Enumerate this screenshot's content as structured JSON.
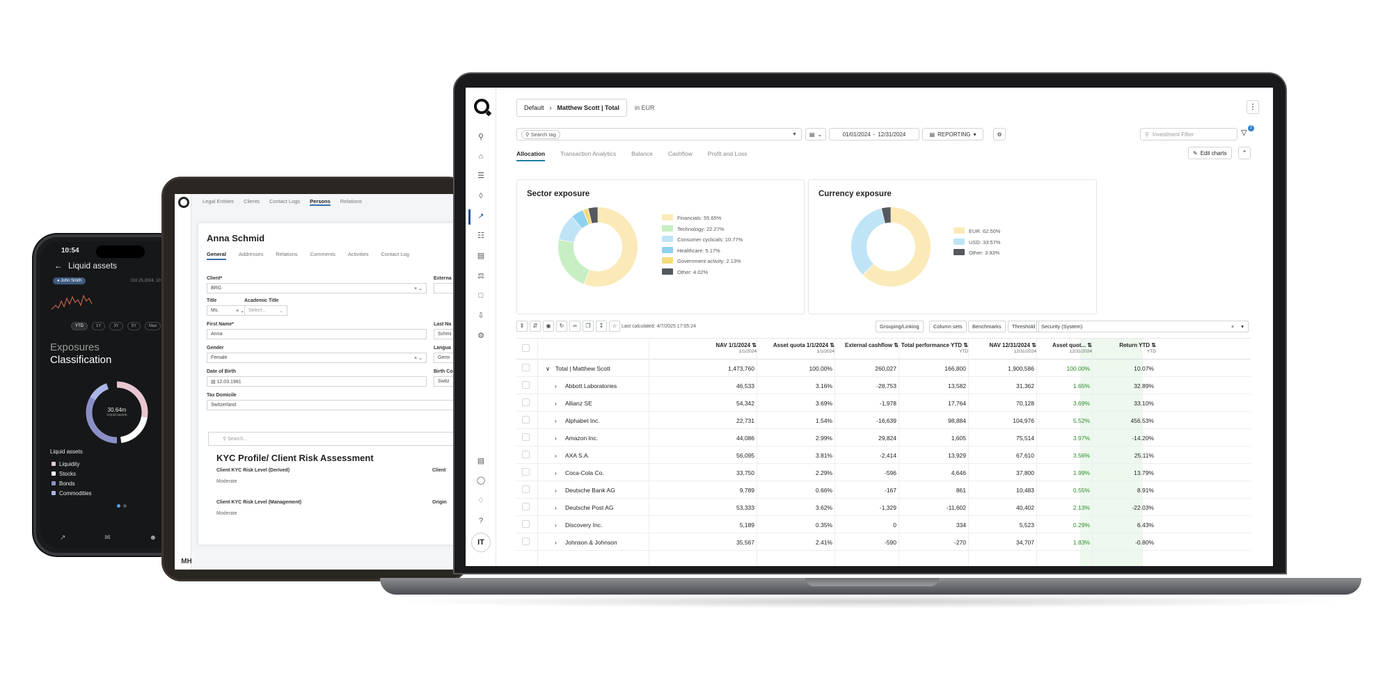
{
  "phone": {
    "time": "10:54",
    "title": "Liquid assets",
    "user_chip": "John Smith",
    "date": "Oct 25,2024, 10:5",
    "range_pills": [
      "YTD",
      "1Y",
      "3Y",
      "5Y",
      "Max"
    ],
    "exposures": "Exposures",
    "classification": "Classification",
    "donut_value": "30.64m",
    "donut_caption": "Liquid assets",
    "list_title": "Liquid assets",
    "legend": [
      {
        "label": "Liquidity",
        "color": "#e8c6d0"
      },
      {
        "label": "Stocks",
        "color": "#ffffff"
      },
      {
        "label": "Bonds",
        "color": "#8b8fc6"
      },
      {
        "label": "Commodities",
        "color": "#a9b6e6"
      }
    ]
  },
  "tablet": {
    "top_tabs": [
      "Legal Entities",
      "Clients",
      "Contact Logs",
      "Persons",
      "Relations"
    ],
    "active_top_tab": "Persons",
    "person_name": "Anna Schmid",
    "tabs": [
      "General",
      "Addresses",
      "Relations",
      "Comments",
      "Activities",
      "Contact Log"
    ],
    "active_tab": "General",
    "fields": {
      "client_label": "Client*",
      "client_value": "BRG",
      "external_label": "Externa",
      "title_label": "Title",
      "title_value": "Ms.",
      "academic_label": "Academic Title",
      "academic_placeholder": "Select...",
      "first_label": "First Name*",
      "first_value": "Anna",
      "last_label": "Last Na",
      "last_value": "Schmi",
      "gender_label": "Gender",
      "gender_value": "Female",
      "lang_label": "Langua",
      "lang_value": "Germ",
      "dob_label": "Date of Birth",
      "dob_value": "12.03.1981",
      "birthc_label": "Birth Co",
      "birthc_value": "Switz",
      "tax_label": "Tax Domicile",
      "tax_value": "Switzerland"
    },
    "search_placeholder": "Search...",
    "kyc_title": "KYC Profile/ Client Risk Assessment",
    "kyc_derived_label": "Client KYC Risk Level (Derived)",
    "kyc_derived_value": "Moderate",
    "kyc_client_label": "Client",
    "kyc_mgmt_label": "Client KYC Risk Level (Management)",
    "kyc_mgmt_value": "Moderate",
    "origin_label": "Origin",
    "footer_initials": "MH"
  },
  "laptop": {
    "breadcrumb": {
      "root": "Default",
      "current": "Matthew Scott | Total"
    },
    "currency_note": "in EUR",
    "search_tag_placeholder": "Search tag",
    "date_from": "01/01/2024",
    "date_sep": "-",
    "date_to": "12/31/2024",
    "reporting": "REPORTING",
    "investment_filter_placeholder": "Investment Filter",
    "filter_badge": "2",
    "tabs": [
      "Allocation",
      "Transaction Analytics",
      "Balance",
      "Cashflow",
      "Profit and Loss"
    ],
    "active_tab": "Allocation",
    "edit_charts": "Edit charts",
    "user_initials": "IT",
    "last_calculated": "Last calculated: 4/7/2025 17:05:24",
    "grid_buttons": [
      "Grouping/Linking",
      "Column sets",
      "Benchmarks",
      "Threshold"
    ],
    "security_select": "Security (System)",
    "columns": [
      {
        "title": "NAV 1/1/2024",
        "sub": "1/1/2024"
      },
      {
        "title": "Asset quota 1/1/2024",
        "sub": "1/1/2024"
      },
      {
        "title": "External cashflow",
        "sub": ""
      },
      {
        "title": "Total performance YTD",
        "sub": "YTD"
      },
      {
        "title": "NAV 12/31/2024",
        "sub": "12/31/2024"
      },
      {
        "title": "Asset quot...",
        "sub": "12/31/2024"
      },
      {
        "title": "Return YTD",
        "sub": "YTD"
      }
    ],
    "rows": [
      {
        "name": "Total | Matthew Scott",
        "nav0": "1,473,760",
        "q0": "100.00%",
        "ext": "260,027",
        "perf": "166,800",
        "nav1": "1,900,586",
        "q1": "100.00%",
        "ret": "10.07%"
      },
      {
        "name": "Abbott Laboratories",
        "nav0": "46,533",
        "q0": "3.16%",
        "ext": "-28,753",
        "perf": "13,582",
        "nav1": "31,362",
        "q1": "1.65%",
        "ret": "32.89%"
      },
      {
        "name": "Allianz SE",
        "nav0": "54,342",
        "q0": "3.69%",
        "ext": "-1,978",
        "perf": "17,764",
        "nav1": "70,128",
        "q1": "3.69%",
        "ret": "33.10%"
      },
      {
        "name": "Alphabet Inc.",
        "nav0": "22,731",
        "q0": "1.54%",
        "ext": "-16,639",
        "perf": "98,884",
        "nav1": "104,976",
        "q1": "5.52%",
        "ret": "456.53%"
      },
      {
        "name": "Amazon Inc.",
        "nav0": "44,086",
        "q0": "2.99%",
        "ext": "29,824",
        "perf": "1,605",
        "nav1": "75,514",
        "q1": "3.97%",
        "ret": "-14.20%"
      },
      {
        "name": "AXA S.A.",
        "nav0": "56,095",
        "q0": "3.81%",
        "ext": "-2,414",
        "perf": "13,929",
        "nav1": "67,610",
        "q1": "3.56%",
        "ret": "25.11%"
      },
      {
        "name": "Coca-Cola Co.",
        "nav0": "33,750",
        "q0": "2.29%",
        "ext": "-596",
        "perf": "4,646",
        "nav1": "37,800",
        "q1": "1.99%",
        "ret": "13.79%"
      },
      {
        "name": "Deutsche Bank AG",
        "nav0": "9,789",
        "q0": "0.66%",
        "ext": "-167",
        "perf": "861",
        "nav1": "10,483",
        "q1": "0.55%",
        "ret": "8.91%"
      },
      {
        "name": "Deutsche Post AG",
        "nav0": "53,333",
        "q0": "3.62%",
        "ext": "-1,329",
        "perf": "-11,602",
        "nav1": "40,402",
        "q1": "2.13%",
        "ret": "-22.03%"
      },
      {
        "name": "Discovery Inc.",
        "nav0": "5,189",
        "q0": "0.35%",
        "ext": "0",
        "perf": "334",
        "nav1": "5,523",
        "q1": "0.29%",
        "ret": "6.43%"
      },
      {
        "name": "Johnson & Johnson",
        "nav0": "35,567",
        "q0": "2.41%",
        "ext": "-590",
        "perf": "-270",
        "nav1": "34,707",
        "q1": "1.83%",
        "ret": "-0.80%"
      }
    ]
  },
  "chart_data": [
    {
      "type": "pie",
      "title": "Sector exposure",
      "categories": [
        "Financials",
        "Technology",
        "Consumer cyclicals",
        "Healthcare",
        "Government activity",
        "Other"
      ],
      "values": [
        55.65,
        22.27,
        10.77,
        5.17,
        2.13,
        4.02
      ],
      "labels": [
        "Financials:",
        "Technology:",
        "Consumer cyclicals:",
        "Healthcare:",
        "Government activity:",
        "Other:"
      ],
      "value_labels": [
        "55.65%",
        "22.27%",
        "10.77%",
        "5.17%",
        "2.13%",
        "4.02%"
      ],
      "colors": [
        "#fbeab8",
        "#c7efc3",
        "#bfe4f6",
        "#8ed2ef",
        "#f5db7a",
        "#55595e"
      ],
      "legend_position": "right"
    },
    {
      "type": "pie",
      "title": "Currency exposure",
      "categories": [
        "EUR",
        "USD",
        "Other"
      ],
      "values": [
        62.5,
        33.57,
        3.93
      ],
      "labels": [
        "EUR:",
        "USD:",
        "Other:"
      ],
      "value_labels": [
        "62.50%",
        "33.57%",
        "3.93%"
      ],
      "colors": [
        "#fbeab8",
        "#bfe4f6",
        "#55595e"
      ],
      "legend_position": "right"
    }
  ]
}
